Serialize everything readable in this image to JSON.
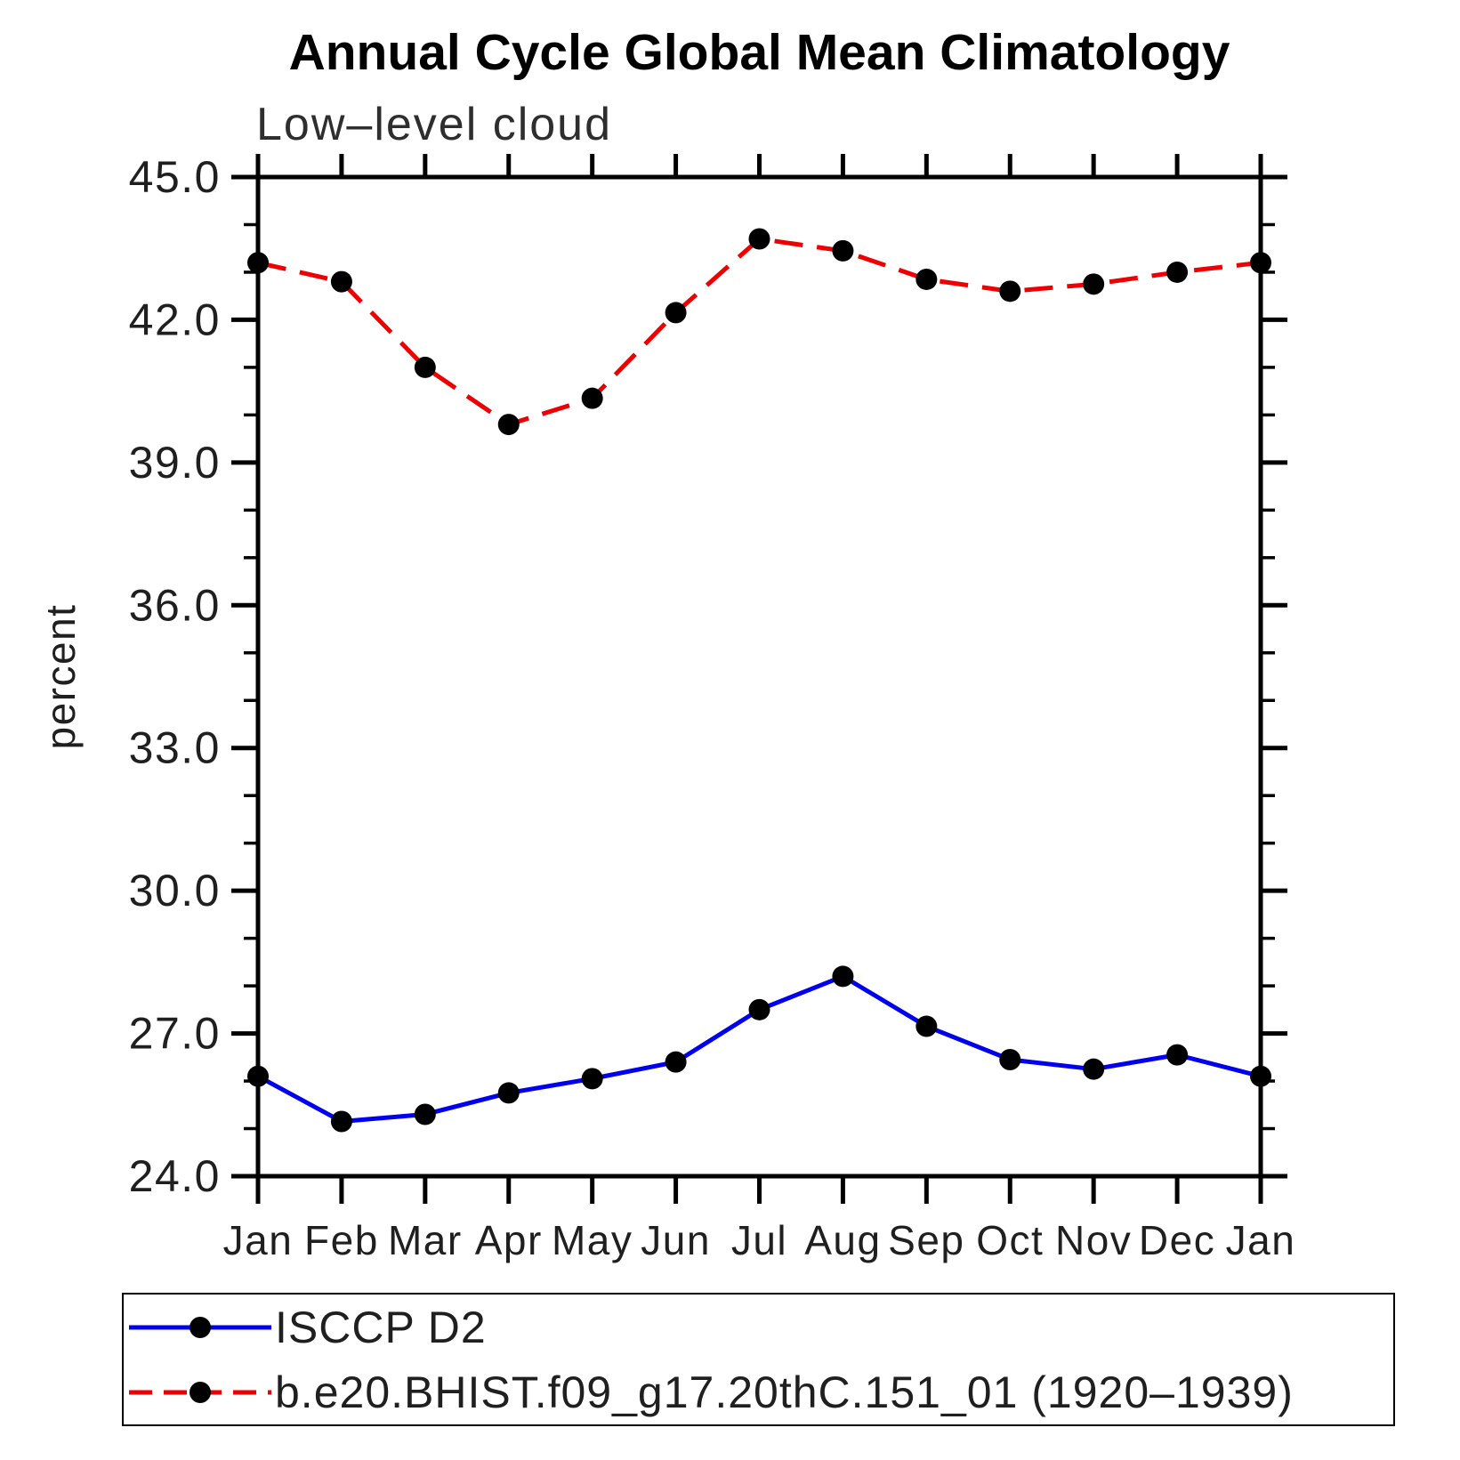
{
  "chart_data": {
    "type": "line",
    "title": "Annual Cycle Global Mean Climatology",
    "subtitle": "Low–level cloud",
    "ylabel": "percent",
    "ylim": [
      24.0,
      45.0
    ],
    "y_major_step": 3.0,
    "y_minor_step": 1.0,
    "y_tick_format": "one_decimal",
    "grid": false,
    "legend_position": "bottom",
    "categories": [
      "Jan",
      "Feb",
      "Mar",
      "Apr",
      "May",
      "Jun",
      "Jul",
      "Aug",
      "Sep",
      "Oct",
      "Nov",
      "Dec",
      "Jan"
    ],
    "series": [
      {
        "name": "ISCCP D2",
        "line_style": "solid",
        "color": "#0000EE",
        "marker": "circle",
        "marker_color": "#000000",
        "values": [
          26.1,
          25.15,
          25.3,
          25.75,
          26.05,
          26.4,
          27.5,
          28.2,
          27.15,
          26.45,
          26.25,
          26.55,
          26.1
        ]
      },
      {
        "name": "b.e20.BHIST.f09_g17.20thC.151_01 (1920–1939)",
        "line_style": "dashed",
        "color": "#EE0000",
        "marker": "circle",
        "marker_color": "#000000",
        "values": [
          43.2,
          42.8,
          41.0,
          39.8,
          40.35,
          42.15,
          43.7,
          43.45,
          42.85,
          42.6,
          42.75,
          43.0,
          43.2
        ]
      }
    ]
  }
}
